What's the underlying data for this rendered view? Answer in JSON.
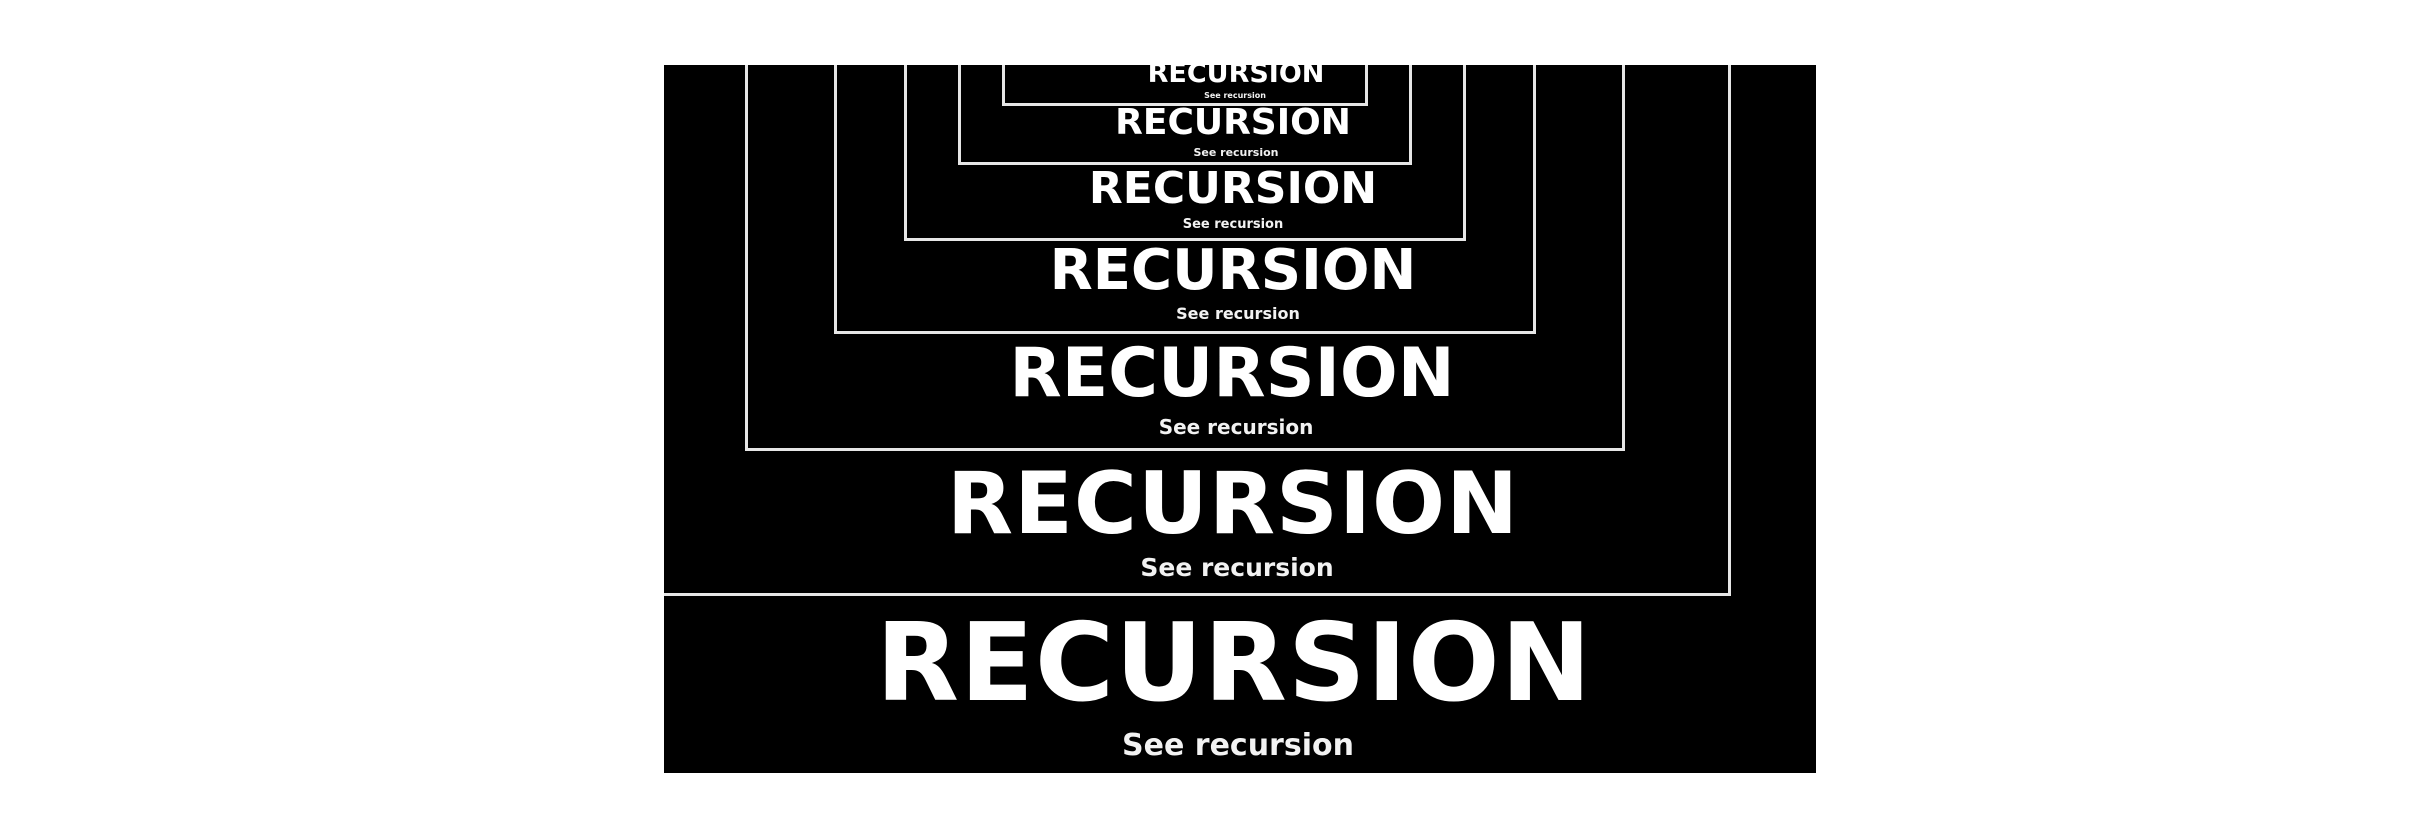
{
  "poster": {
    "background": "#000000",
    "line_color": "#e6e6e6",
    "text_color": "#ffffff",
    "levels": [
      {
        "title": "RECURSION",
        "caption": "See recursion"
      },
      {
        "title": "RECURSION",
        "caption": "See recursion"
      },
      {
        "title": "RECURSION",
        "caption": "See recursion"
      },
      {
        "title": "RECURSION",
        "caption": "See recursion"
      },
      {
        "title": "RECURSION",
        "caption": "See recursion"
      },
      {
        "title": "RECURSION",
        "caption": "See recursion"
      },
      {
        "title": "RECURSION",
        "caption": "See recursion"
      }
    ]
  }
}
